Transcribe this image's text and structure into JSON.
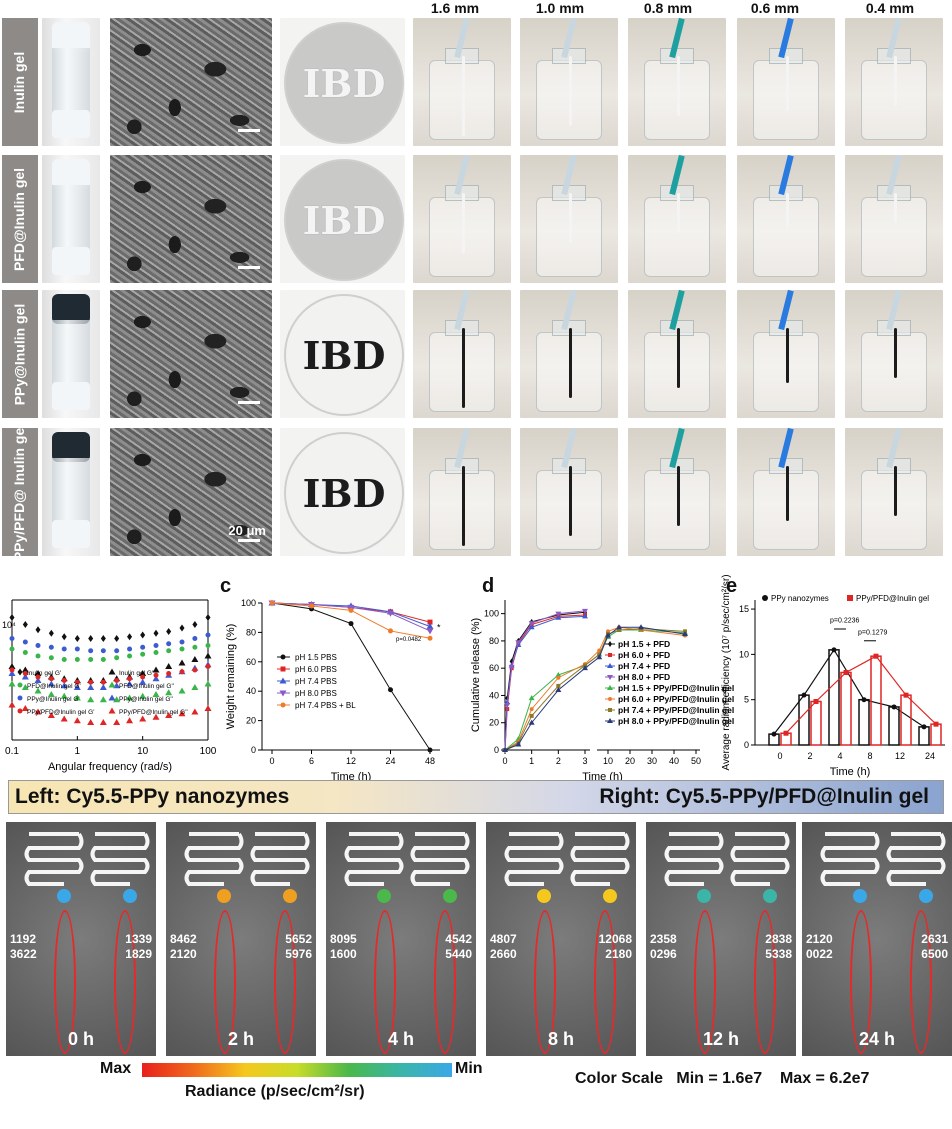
{
  "figure": {
    "row_labels": [
      "Inulin gel",
      "PFD@Inulin gel",
      "PPy@Inulin gel",
      "PPy/PFD@ Inulin gel"
    ],
    "needle_sizes": [
      "1.6 mm",
      "1.0 mm",
      "0.8 mm",
      "0.6 mm",
      "0.4 mm"
    ],
    "dish_text": "IBD",
    "scale_bar": "20 μm",
    "colors": {
      "strand_white": "#f4f4f4",
      "strand_dark": "#1c1c1c",
      "cap_white": "#f2f6f8",
      "cap_dark": "#1f2a33",
      "needle_blue": "#2a7be0",
      "needle_teal": "#1fa0a0",
      "needle_clear": "#c8d6e0",
      "red": "#e02525",
      "orange": "#f07a2a",
      "blue": "#3c5bd0",
      "green": "#3ab54a",
      "purple": "#8a5bc8",
      "black": "#111111"
    }
  },
  "panel_b": {
    "xlabel": "Angular frequency (rad/s)",
    "xticks": [
      "0.1",
      "1",
      "10",
      "100"
    ],
    "ytick": "10⁴",
    "legend": [
      "Inulin gel G'",
      "Inulin gel G''",
      "PFD@Inulin gel G'",
      "PFD@Inulin gel G''",
      "PPy@Inulin gel G'",
      "PPy@Inulin gel G''",
      "PPy/PFD@Inulin gel G'",
      "PPy/PFD@Inulin gel G''"
    ]
  },
  "panel_c": {
    "letter": "c",
    "annotation_1": "*",
    "annotation_2": "p=0.0482"
  },
  "panel_d": {
    "letter": "d"
  },
  "panel_e": {
    "letter": "e",
    "p_values": [
      "p=0.2236",
      "p=0.1279"
    ]
  },
  "chart_data": [
    {
      "type": "scatter",
      "title": "",
      "xlabel": "Angular frequency (rad/s)",
      "ylabel": "",
      "xscale": "log",
      "xlim": [
        0.1,
        100
      ],
      "series": [
        {
          "name": "Inulin gel G'",
          "x": [
            0.1,
            0.16,
            0.25,
            0.4,
            0.63,
            1,
            1.6,
            2.5,
            4,
            6.3,
            10,
            16,
            25,
            40,
            63,
            100
          ],
          "values": [
            1.5,
            1.46,
            1.43,
            1.41,
            1.39,
            1.38,
            1.38,
            1.38,
            1.38,
            1.39,
            1.4,
            1.41,
            1.42,
            1.44,
            1.46,
            1.5
          ]
        },
        {
          "name": "Inulin gel G''",
          "x": [
            0.1,
            0.16,
            0.25,
            0.4,
            0.63,
            1,
            1.6,
            2.5,
            4,
            6.3,
            10,
            16,
            25,
            40,
            63,
            100
          ],
          "values": [
            1.22,
            1.2,
            1.18,
            1.16,
            1.15,
            1.14,
            1.14,
            1.14,
            1.15,
            1.16,
            1.18,
            1.2,
            1.22,
            1.24,
            1.26,
            1.28
          ]
        },
        {
          "name": "PFD@Inulin gel G'",
          "x": [
            0.1,
            0.16,
            0.25,
            0.4,
            0.63,
            1,
            1.6,
            2.5,
            4,
            6.3,
            10,
            16,
            25,
            40,
            63,
            100
          ],
          "values": [
            1.32,
            1.3,
            1.28,
            1.27,
            1.26,
            1.26,
            1.26,
            1.26,
            1.27,
            1.28,
            1.29,
            1.3,
            1.31,
            1.32,
            1.33,
            1.34
          ]
        },
        {
          "name": "PFD@Inulin gel G''",
          "x": [
            0.1,
            0.16,
            0.25,
            0.4,
            0.63,
            1,
            1.6,
            2.5,
            4,
            6.3,
            10,
            16,
            25,
            40,
            63,
            100
          ],
          "values": [
            1.12,
            1.1,
            1.08,
            1.06,
            1.05,
            1.04,
            1.03,
            1.03,
            1.03,
            1.04,
            1.05,
            1.06,
            1.07,
            1.08,
            1.1,
            1.12
          ]
        },
        {
          "name": "PPy@Inulin gel G'",
          "x": [
            0.1,
            0.16,
            0.25,
            0.4,
            0.63,
            1,
            1.6,
            2.5,
            4,
            6.3,
            10,
            16,
            25,
            40,
            63,
            100
          ],
          "values": [
            1.38,
            1.36,
            1.34,
            1.33,
            1.32,
            1.32,
            1.31,
            1.31,
            1.31,
            1.32,
            1.33,
            1.34,
            1.35,
            1.36,
            1.38,
            1.4
          ]
        },
        {
          "name": "PPy@Inulin gel G''",
          "x": [
            0.1,
            0.16,
            0.25,
            0.4,
            0.63,
            1,
            1.6,
            2.5,
            4,
            6.3,
            10,
            16,
            25,
            40,
            63,
            100
          ],
          "values": [
            1.18,
            1.16,
            1.14,
            1.12,
            1.11,
            1.1,
            1.1,
            1.1,
            1.11,
            1.12,
            1.13,
            1.15,
            1.17,
            1.19,
            1.21,
            1.23
          ]
        },
        {
          "name": "PPy/PFD@Inulin gel G'",
          "x": [
            0.1,
            0.16,
            0.25,
            0.4,
            0.63,
            1,
            1.6,
            2.5,
            4,
            6.3,
            10,
            16,
            25,
            40,
            63,
            100
          ],
          "values": [
            1.2,
            1.18,
            1.16,
            1.15,
            1.14,
            1.13,
            1.13,
            1.13,
            1.14,
            1.15,
            1.16,
            1.17,
            1.18,
            1.19,
            1.2,
            1.22
          ]
        },
        {
          "name": "PPy/PFD@Inulin gel G''",
          "x": [
            0.1,
            0.16,
            0.25,
            0.4,
            0.63,
            1,
            1.6,
            2.5,
            4,
            6.3,
            10,
            16,
            25,
            40,
            63,
            100
          ],
          "values": [
            1.0,
            0.98,
            0.96,
            0.94,
            0.92,
            0.91,
            0.9,
            0.9,
            0.9,
            0.91,
            0.92,
            0.93,
            0.94,
            0.95,
            0.96,
            0.98
          ]
        }
      ]
    },
    {
      "type": "line",
      "title": "",
      "xlabel": "Time (h)",
      "ylabel": "Weight remaining (%)",
      "xticks": [
        "0",
        "6",
        "12",
        "24",
        "48"
      ],
      "yticks": [
        "0",
        "20",
        "40",
        "60",
        "80",
        "100"
      ],
      "ylim": [
        0,
        100
      ],
      "categories": [
        "0",
        "6",
        "12",
        "24",
        "48"
      ],
      "series": [
        {
          "name": "pH 1.5 PBS",
          "values": [
            100,
            96,
            86,
            41,
            0
          ]
        },
        {
          "name": "pH 6.0 PBS",
          "values": [
            100,
            99,
            97,
            94,
            87
          ]
        },
        {
          "name": "pH 7.4 PBS",
          "values": [
            100,
            99,
            98,
            94,
            84
          ]
        },
        {
          "name": "pH 8.0 PBS",
          "values": [
            100,
            99,
            97,
            93,
            81
          ]
        },
        {
          "name": "pH 7.4 PBS + BL",
          "values": [
            100,
            98,
            95,
            81,
            76
          ]
        }
      ]
    },
    {
      "type": "line",
      "title": "",
      "xlabel": "Time (h)",
      "ylabel": "Cumulative release (%)",
      "xticks": [
        "0",
        "1",
        "2",
        "3",
        "10",
        "20",
        "30",
        "40",
        "50"
      ],
      "yticks": [
        "0",
        "20",
        "40",
        "60",
        "80",
        "100"
      ],
      "ylim": [
        0,
        110
      ],
      "series": [
        {
          "name": "pH 1.5 + PFD",
          "x": [
            0,
            0.083,
            0.25,
            0.5,
            1,
            2,
            3
          ],
          "values": [
            0,
            38,
            65,
            80,
            94,
            99,
            101
          ]
        },
        {
          "name": "pH 6.0 + PFD",
          "x": [
            0,
            0.083,
            0.25,
            0.5,
            1,
            2,
            3
          ],
          "values": [
            0,
            30,
            60,
            78,
            92,
            98,
            99
          ]
        },
        {
          "name": "pH 7.4 + PFD",
          "x": [
            0,
            0.083,
            0.25,
            0.5,
            1,
            2,
            3
          ],
          "values": [
            0,
            35,
            62,
            77,
            90,
            97,
            98
          ]
        },
        {
          "name": "pH 8.0 + PFD",
          "x": [
            0,
            0.083,
            0.25,
            0.5,
            1,
            2,
            3
          ],
          "values": [
            0,
            33,
            61,
            79,
            93,
            100,
            102
          ]
        },
        {
          "name": "pH 1.5 + PPy/PFD@Inulin gel",
          "x": [
            0,
            0.5,
            1,
            2,
            3,
            6,
            10,
            15,
            25,
            45
          ],
          "values": [
            0,
            8,
            38,
            55,
            62,
            70,
            83,
            88,
            88,
            86
          ]
        },
        {
          "name": "pH 6.0 + PPy/PFD@Inulin gel",
          "x": [
            0,
            0.5,
            1,
            2,
            3,
            6,
            10,
            15,
            25,
            45
          ],
          "values": [
            0,
            6,
            30,
            53,
            63,
            73,
            87,
            90,
            88,
            84
          ]
        },
        {
          "name": "pH 7.4 + PPy/PFD@Inulin gel",
          "x": [
            0,
            0.5,
            1,
            2,
            3,
            6,
            10,
            15,
            25,
            45
          ],
          "values": [
            0,
            5,
            25,
            47,
            62,
            70,
            85,
            88,
            89,
            87
          ]
        },
        {
          "name": "pH 8.0 + PPy/PFD@Inulin gel",
          "x": [
            0,
            0.5,
            1,
            2,
            3,
            6,
            10,
            15,
            25,
            45
          ],
          "values": [
            0,
            4,
            20,
            44,
            60,
            68,
            84,
            90,
            90,
            85
          ]
        }
      ]
    },
    {
      "type": "bar",
      "title": "",
      "xlabel": "Time (h)",
      "ylabel": "Average radiant efficiency (10⁷ p/sec/cm²/sr)",
      "xticks": [
        "0",
        "2",
        "4",
        "8",
        "12",
        "24"
      ],
      "yticks": [
        "0",
        "5",
        "10",
        "15"
      ],
      "ylim": [
        0,
        16
      ],
      "categories": [
        "0",
        "2",
        "4",
        "8",
        "12",
        "24"
      ],
      "series": [
        {
          "name": "PPy nanozymes",
          "values": [
            1.2,
            5.5,
            10.5,
            5.0,
            4.2,
            2.0
          ]
        },
        {
          "name": "PPy/PFD@Inulin gel",
          "values": [
            1.3,
            4.8,
            8.0,
            9.8,
            5.5,
            2.3
          ]
        }
      ]
    }
  ],
  "ivis": {
    "left_label": "Left: Cy5.5-PPy nanozymes",
    "right_label": "Right: Cy5.5-PPy/PFD@Inulin gel",
    "panels": [
      {
        "time": "0 h",
        "left_a": "1192",
        "left_b": "3622",
        "right_a": "1339",
        "right_b": "1829"
      },
      {
        "time": "2 h",
        "left_a": "8462",
        "left_b": "2120",
        "right_a": "5652",
        "right_b": "5976"
      },
      {
        "time": "4 h",
        "left_a": "8095",
        "left_b": "1600",
        "right_a": "4542",
        "right_b": "5440"
      },
      {
        "time": "8 h",
        "left_a": "4807",
        "left_b": "2660",
        "right_a": "12068",
        "right_b": "2180"
      },
      {
        "time": "12 h",
        "left_a": "2358",
        "left_b": "0296",
        "right_a": "2838",
        "right_b": "5338"
      },
      {
        "time": "24 h",
        "left_a": "2120",
        "left_b": "0022",
        "right_a": "2631",
        "right_b": "6500"
      }
    ],
    "scale_max": "Max",
    "scale_min": "Min",
    "radiance": "Radiance (p/sec/cm²/sr)",
    "color_scale": "Color Scale   Min = 1.6e7    Max = 6.2e7"
  }
}
